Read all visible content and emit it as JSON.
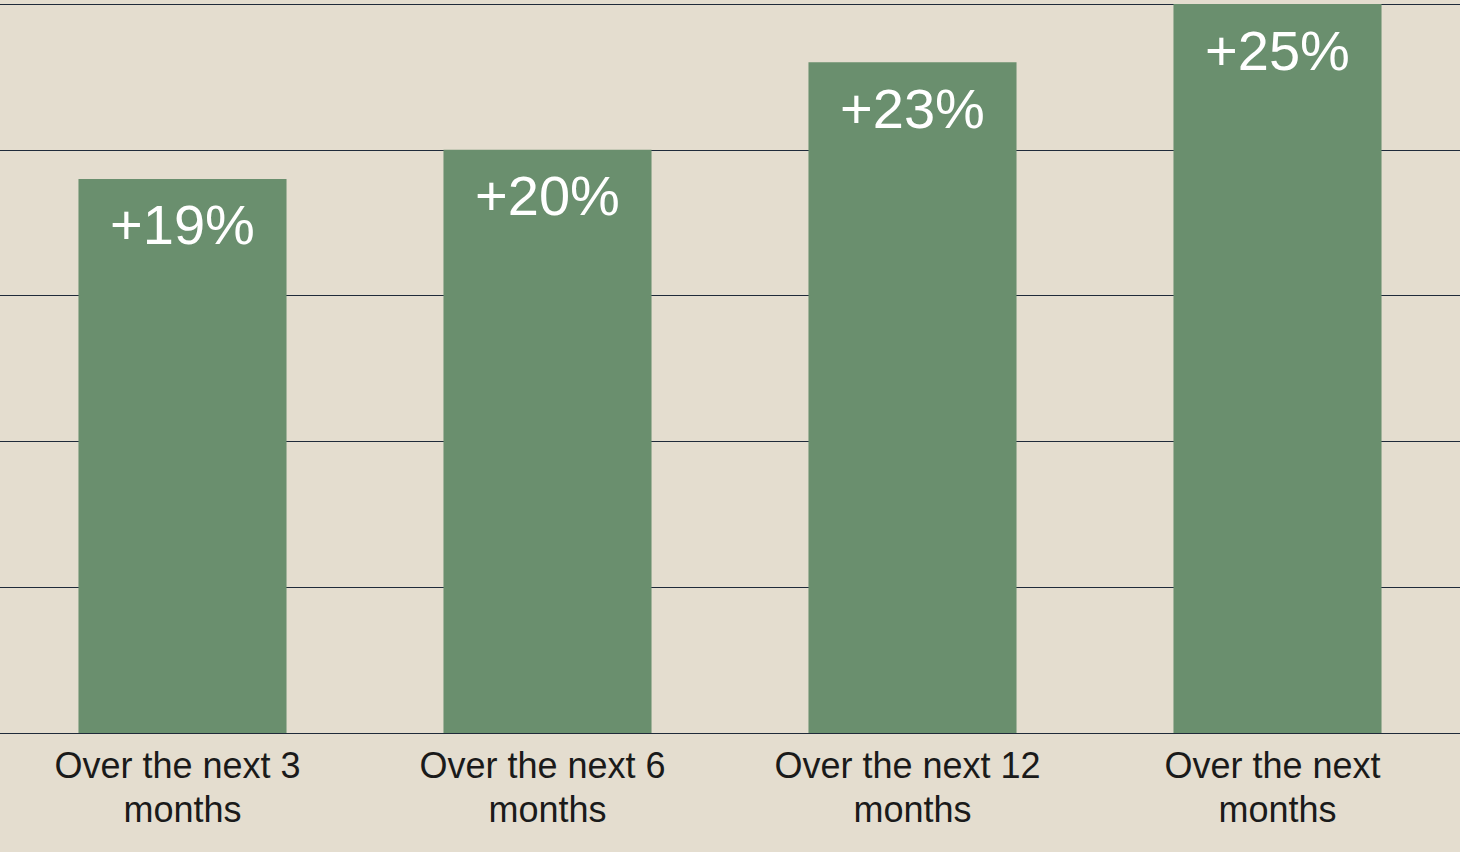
{
  "chart_data": {
    "type": "bar",
    "categories": [
      "Over the next 3 months",
      "Over the next 6 months",
      "Over the next 12 months",
      "Over the next months"
    ],
    "values": [
      19,
      20,
      23,
      25
    ],
    "value_labels": [
      "+19%",
      "+20%",
      "+23%",
      "+25%"
    ],
    "color": "#6a8f6e",
    "ylim": [
      0,
      25
    ],
    "yticks": [
      0,
      5,
      10,
      15,
      20,
      25
    ],
    "grid": true,
    "data_labels": true,
    "tick_labels": "x"
  }
}
